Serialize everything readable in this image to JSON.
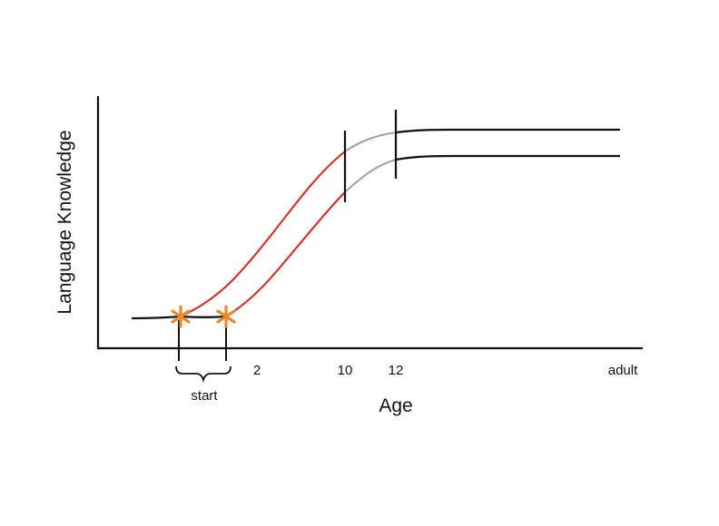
{
  "chart_data": {
    "type": "line",
    "ylabel": "Language Knowledge",
    "xlabel": "Age",
    "x_ticks": [
      {
        "label": "2"
      },
      {
        "label": "10"
      },
      {
        "label": "12"
      },
      {
        "label": "adult"
      }
    ],
    "bracket_label": "start",
    "series": [
      {
        "segments": {
          "baseline": "#111111",
          "growth": "#e02418",
          "transition": "#9aa3a6",
          "plateau": "#111111"
        }
      },
      {
        "segments": {
          "baseline": "#111111",
          "growth": "#e02418",
          "transition": "#9aa3a6",
          "plateau": "#111111"
        }
      }
    ],
    "markers": {
      "color": "#f0862a",
      "glyph": "*"
    },
    "grid": false,
    "legend": "none"
  }
}
